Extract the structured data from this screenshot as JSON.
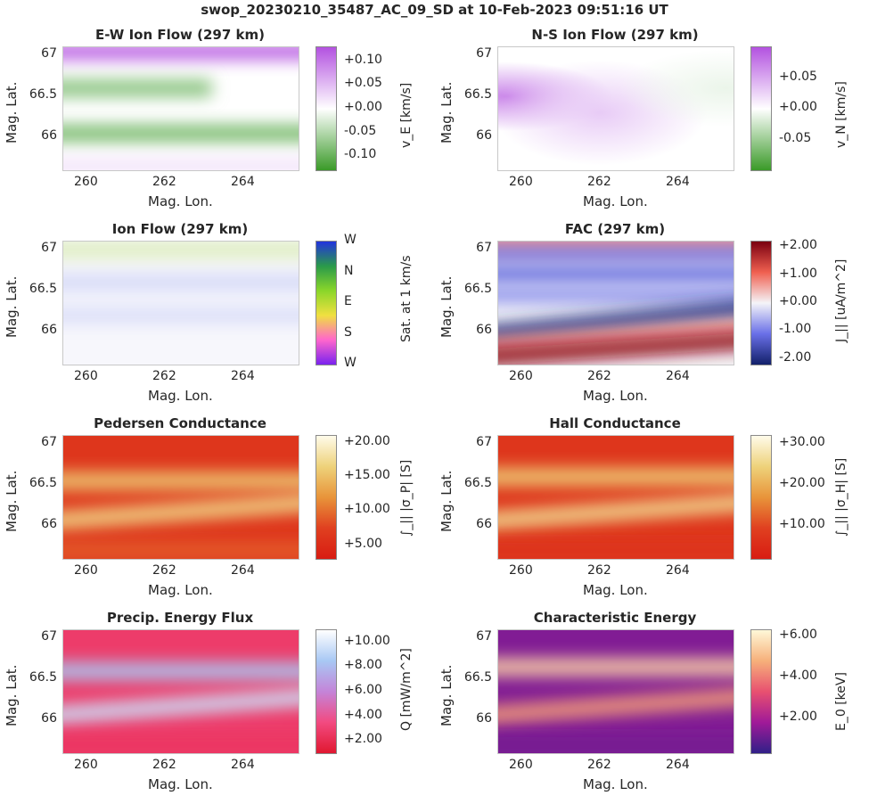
{
  "figure": {
    "suptitle": "swop_20230210_35487_AC_09_SD at 10-Feb-2023 09:51:16 UT"
  },
  "panels": [
    {
      "title": "E-W Ion Flow (297 km)",
      "xlabel": "Mag. Lon.",
      "ylabel": "Mag. Lat.",
      "cbar_label": "v_E [km/s]",
      "xticks": [
        "260",
        "262",
        "264"
      ],
      "yticks": [
        "67",
        "66.5",
        "66"
      ],
      "cbar_ticks": [
        "+0.10",
        "+0.05",
        "+0.00",
        "-0.05",
        "-0.10"
      ],
      "colormap": "purple-white-green",
      "colors": [
        "#b352e0",
        "#ffffff",
        "#3a9a28"
      ]
    },
    {
      "title": "N-S Ion Flow (297 km)",
      "xlabel": "Mag. Lon.",
      "ylabel": "Mag. Lat.",
      "cbar_label": "v_N [km/s]",
      "xticks": [
        "260",
        "262",
        "264"
      ],
      "yticks": [
        "67",
        "66.5",
        "66"
      ],
      "cbar_ticks": [
        "+0.05",
        "+0.00",
        "-0.05"
      ],
      "colormap": "purple-white-green",
      "colors": [
        "#b352e0",
        "#ffffff",
        "#3a9a28"
      ]
    },
    {
      "title": "Ion Flow (297 km)",
      "xlabel": "Mag. Lon.",
      "ylabel": "Mag. Lat.",
      "cbar_label": "Sat. at 1 km/s",
      "xticks": [
        "260",
        "262",
        "264"
      ],
      "yticks": [
        "67",
        "66.5",
        "66"
      ],
      "cbar_ticks": [
        "W",
        "N",
        "E",
        "S",
        "W"
      ],
      "colormap": "directional-hue",
      "colors": [
        "#2233dd",
        "#2a9a4a",
        "#8ad62a",
        "#f0e040",
        "#ff66cc",
        "#7a22ee"
      ]
    },
    {
      "title": "FAC (297 km)",
      "xlabel": "Mag. Lon.",
      "ylabel": "Mag. Lat.",
      "cbar_label": "J_|| [uA/m^2]",
      "xticks": [
        "260",
        "262",
        "264"
      ],
      "yticks": [
        "67",
        "66.5",
        "66"
      ],
      "cbar_ticks": [
        "+2.00",
        "+1.00",
        "+0.00",
        "-1.00",
        "-2.00"
      ],
      "colormap": "red-white-blue",
      "colors": [
        "#7a0010",
        "#f06050",
        "#f4f4f8",
        "#6a70e8",
        "#12206a"
      ]
    },
    {
      "title": "Pedersen Conductance",
      "xlabel": "Mag. Lon.",
      "ylabel": "Mag. Lat.",
      "cbar_label": "∫_|| |σ_P| [S]",
      "xticks": [
        "260",
        "262",
        "264"
      ],
      "yticks": [
        "67",
        "66.5",
        "66"
      ],
      "cbar_ticks": [
        "+20.00",
        "+15.00",
        "+10.00",
        "+5.00"
      ],
      "colormap": "cream-orange-red",
      "colors": [
        "#fffbea",
        "#eed27a",
        "#e8943a",
        "#e04020",
        "#d81c12"
      ]
    },
    {
      "title": "Hall Conductance",
      "xlabel": "Mag. Lon.",
      "ylabel": "Mag. Lat.",
      "cbar_label": "∫_|| |σ_H| [S]",
      "xticks": [
        "260",
        "262",
        "264"
      ],
      "yticks": [
        "67",
        "66.5",
        "66"
      ],
      "cbar_ticks": [
        "+30.00",
        "+20.00",
        "+10.00"
      ],
      "colormap": "cream-orange-red",
      "colors": [
        "#fffbea",
        "#eed27a",
        "#e8943a",
        "#e04020",
        "#d81c12"
      ]
    },
    {
      "title": "Precip. Energy Flux",
      "xlabel": "Mag. Lon.",
      "ylabel": "Mag. Lat.",
      "cbar_label": "Q [mW/m^2]",
      "xticks": [
        "260",
        "262",
        "264"
      ],
      "yticks": [
        "67",
        "66.5",
        "66"
      ],
      "cbar_ticks": [
        "+10.00",
        "+8.00",
        "+6.00",
        "+4.00",
        "+2.00"
      ],
      "colormap": "white-blue-red",
      "colors": [
        "#ffffff",
        "#a8c8f4",
        "#c484d8",
        "#f24a80",
        "#e01830"
      ]
    },
    {
      "title": "Characteristic Energy",
      "xlabel": "Mag. Lon.",
      "ylabel": "Mag. Lat.",
      "cbar_label": "E_0 [keV]",
      "xticks": [
        "260",
        "262",
        "264"
      ],
      "yticks": [
        "67",
        "66.5",
        "66"
      ],
      "cbar_ticks": [
        "+6.00",
        "+4.00",
        "+2.00"
      ],
      "colormap": "cream-orange-purple",
      "colors": [
        "#fff8d8",
        "#f6b07a",
        "#e85070",
        "#a01a98",
        "#302088"
      ]
    }
  ],
  "chart_data": [
    {
      "type": "heatmap",
      "title": "E-W Ion Flow (297 km)",
      "xlabel": "Mag. Lon.",
      "ylabel": "Mag. Lat.",
      "colorbar_label": "v_E [km/s]",
      "x_ticks": [
        260,
        262,
        264
      ],
      "y_ticks": [
        67,
        66.5,
        66
      ],
      "xlim": [
        259.4,
        265.4
      ],
      "ylim": [
        65.6,
        67.1
      ],
      "clim": [
        -0.13,
        0.13
      ],
      "colorbar_ticks": [
        0.1,
        0.05,
        0.0,
        -0.05,
        -0.1
      ],
      "features": [
        {
          "lat": 67.05,
          "value": 0.12,
          "lon_extent": [
            259.4,
            265.4
          ]
        },
        {
          "lat": 66.6,
          "value": -0.08,
          "lon_extent": [
            259.4,
            262.5
          ]
        },
        {
          "lat": 66.05,
          "value": -0.09,
          "lon_extent": [
            259.4,
            265.4
          ]
        },
        {
          "lat": 65.65,
          "value": 0.02,
          "lon_extent": [
            259.4,
            265.4
          ]
        }
      ]
    },
    {
      "type": "heatmap",
      "title": "N-S Ion Flow (297 km)",
      "xlabel": "Mag. Lon.",
      "ylabel": "Mag. Lat.",
      "colorbar_label": "v_N [km/s]",
      "x_ticks": [
        260,
        262,
        264
      ],
      "y_ticks": [
        67,
        66.5,
        66
      ],
      "xlim": [
        259.4,
        265.4
      ],
      "ylim": [
        65.6,
        67.1
      ],
      "clim": [
        -0.1,
        0.1
      ],
      "colorbar_ticks": [
        0.05,
        0.0,
        -0.05
      ],
      "features": [
        {
          "lon": 259.6,
          "lat": 66.5,
          "value": 0.07
        },
        {
          "lon": 262.0,
          "lat": 66.3,
          "value": 0.03
        },
        {
          "lon": 265.2,
          "lat": 66.6,
          "value": -0.01
        }
      ]
    },
    {
      "type": "heatmap",
      "title": "Ion Flow (297 km)",
      "xlabel": "Mag. Lon.",
      "ylabel": "Mag. Lat.",
      "colorbar_label": "Sat. at 1 km/s",
      "x_ticks": [
        260,
        262,
        264
      ],
      "y_ticks": [
        67,
        66.5,
        66
      ],
      "xlim": [
        259.4,
        265.4
      ],
      "ylim": [
        65.6,
        67.1
      ],
      "colorbar_ticks": [
        "W",
        "N",
        "E",
        "S",
        "W"
      ],
      "features": [
        {
          "lat": 67.0,
          "direction": "E",
          "saturation": 0.1
        },
        {
          "lat": 66.6,
          "direction": "W",
          "saturation": 0.06
        },
        {
          "lat": 66.2,
          "direction": "W",
          "saturation": 0.05
        }
      ]
    },
    {
      "type": "heatmap",
      "title": "FAC (297 km)",
      "xlabel": "Mag. Lon.",
      "ylabel": "Mag. Lat.",
      "colorbar_label": "J_|| [uA/m^2]",
      "x_ticks": [
        260,
        262,
        264
      ],
      "y_ticks": [
        67,
        66.5,
        66
      ],
      "xlim": [
        259.4,
        265.4
      ],
      "ylim": [
        65.6,
        67.1
      ],
      "clim": [
        -2.2,
        2.2
      ],
      "colorbar_ticks": [
        2.0,
        1.0,
        0.0,
        -1.0,
        -2.0
      ],
      "features": [
        {
          "lat": 67.05,
          "value": 1.0
        },
        {
          "lat": 66.95,
          "value": -1.0
        },
        {
          "lat": 66.7,
          "value": -1.2
        },
        {
          "lat": 66.45,
          "value": -0.8
        },
        {
          "lat_at_lon": [
            [
              259.4,
              65.95
            ],
            [
              265.4,
              66.3
            ]
          ],
          "value": -2.0
        },
        {
          "lat_at_lon": [
            [
              259.4,
              65.8
            ],
            [
              265.4,
              66.05
            ]
          ],
          "value": 0.8
        },
        {
          "lat_at_lon": [
            [
              259.4,
              65.68
            ],
            [
              265.4,
              65.9
            ]
          ],
          "value": 2.0
        }
      ]
    },
    {
      "type": "heatmap",
      "title": "Pedersen Conductance",
      "xlabel": "Mag. Lon.",
      "ylabel": "Mag. Lat.",
      "colorbar_label": "∫_|| |σ_P| [S]",
      "x_ticks": [
        260,
        262,
        264
      ],
      "y_ticks": [
        67,
        66.5,
        66
      ],
      "xlim": [
        259.4,
        265.4
      ],
      "ylim": [
        65.6,
        67.1
      ],
      "clim": [
        3,
        21
      ],
      "colorbar_ticks": [
        20.0,
        15.0,
        10.0,
        5.0
      ],
      "features": [
        {
          "lat": 66.55,
          "value": 16
        },
        {
          "lat_at_lon": [
            [
              259.4,
              66.05
            ],
            [
              265.4,
              66.3
            ]
          ],
          "value": 17
        },
        {
          "lat": 65.7,
          "value": 9
        }
      ]
    },
    {
      "type": "heatmap",
      "title": "Hall Conductance",
      "xlabel": "Mag. Lon.",
      "ylabel": "Mag. Lat.",
      "colorbar_label": "∫_|| |σ_H| [S]",
      "x_ticks": [
        260,
        262,
        264
      ],
      "y_ticks": [
        67,
        66.5,
        66
      ],
      "xlim": [
        259.4,
        265.4
      ],
      "ylim": [
        65.6,
        67.1
      ],
      "clim": [
        2,
        32
      ],
      "colorbar_ticks": [
        30.0,
        20.0,
        10.0
      ],
      "features": [
        {
          "lat": 66.6,
          "value": 24
        },
        {
          "lat_at_lon": [
            [
              259.4,
              66.05
            ],
            [
              265.4,
              66.3
            ]
          ],
          "value": 26
        },
        {
          "lat": 65.7,
          "value": 7
        }
      ]
    },
    {
      "type": "heatmap",
      "title": "Precip. Energy Flux",
      "xlabel": "Mag. Lon.",
      "ylabel": "Mag. Lat.",
      "colorbar_label": "Q [mW/m^2]",
      "x_ticks": [
        260,
        262,
        264
      ],
      "y_ticks": [
        67,
        66.5,
        66
      ],
      "xlim": [
        259.4,
        265.4
      ],
      "ylim": [
        65.6,
        67.1
      ],
      "clim": [
        1,
        11
      ],
      "colorbar_ticks": [
        10.0,
        8.0,
        6.0,
        4.0,
        2.0
      ],
      "features": [
        {
          "lat": 66.6,
          "value": 8.5
        },
        {
          "lat_at_lon": [
            [
              259.4,
              66.05
            ],
            [
              265.4,
              66.3
            ]
          ],
          "value": 9.5
        },
        {
          "lat": 65.7,
          "value": 2.5
        }
      ]
    },
    {
      "type": "heatmap",
      "title": "Characteristic Energy",
      "xlabel": "Mag. Lon.",
      "ylabel": "Mag. Lat.",
      "colorbar_label": "E_0 [keV]",
      "x_ticks": [
        260,
        262,
        264
      ],
      "y_ticks": [
        67,
        66.5,
        66
      ],
      "xlim": [
        259.4,
        265.4
      ],
      "ylim": [
        65.6,
        67.1
      ],
      "clim": [
        0.3,
        6.3
      ],
      "colorbar_ticks": [
        6.0,
        4.0,
        2.0
      ],
      "features": [
        {
          "lat": 66.65,
          "value": 5.5
        },
        {
          "lat_at_lon": [
            [
              259.4,
              66.05
            ],
            [
              265.4,
              66.3
            ]
          ],
          "value": 4.5
        },
        {
          "lat": 65.7,
          "value": 1.2
        }
      ]
    }
  ]
}
